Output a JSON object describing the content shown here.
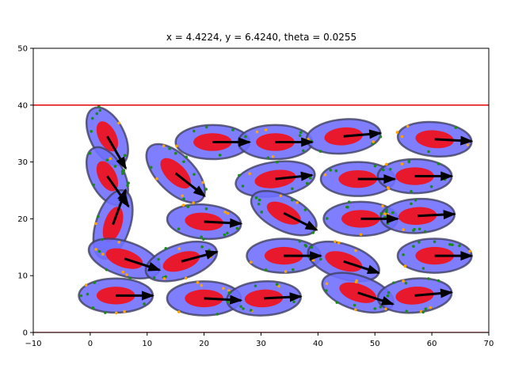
{
  "chart_data": {
    "type": "scatter",
    "title": "x = 4.4224, y = 6.4240, theta = 0.0255",
    "xlabel": "",
    "ylabel": "",
    "xlim": [
      -10,
      70
    ],
    "ylim": [
      0,
      50
    ],
    "xticks": [
      "−10",
      "0",
      "10",
      "20",
      "30",
      "40",
      "50",
      "60",
      "70"
    ],
    "yticks": [
      "0",
      "10",
      "20",
      "30",
      "40",
      "50"
    ],
    "xtick_values": [
      -10,
      0,
      10,
      20,
      30,
      40,
      50,
      60,
      70
    ],
    "ytick_values": [
      0,
      10,
      20,
      30,
      40,
      50
    ],
    "grid": false,
    "boundary_lines": [
      {
        "y": 40,
        "color": "#e00000"
      },
      {
        "y": 0,
        "color": "#e00000"
      }
    ],
    "colors": {
      "outer_fill": "#7070ff",
      "outer_edge": "#404060",
      "inner_fill": "#e8192c",
      "arrow": "#000000",
      "dot_green": "#1a8a1a",
      "dot_orange": "#ffa500"
    },
    "agents": [
      {
        "x": 3.0,
        "y": 34.5,
        "angle": -63,
        "w": 11.0,
        "h": 6.0,
        "heading": -60
      },
      {
        "x": 3.0,
        "y": 27.5,
        "angle": -63,
        "w": 11.0,
        "h": 6.0,
        "heading": -55
      },
      {
        "x": 4.0,
        "y": 19.0,
        "angle": 72,
        "w": 12.5,
        "h": 6.0,
        "heading": 70
      },
      {
        "x": 15.0,
        "y": 28.0,
        "angle": -45,
        "w": 13.0,
        "h": 6.5,
        "heading": -38
      },
      {
        "x": 21.5,
        "y": 33.5,
        "angle": 0,
        "w": 13.0,
        "h": 6.0,
        "heading": 0
      },
      {
        "x": 32.5,
        "y": 33.5,
        "angle": 0,
        "w": 13.0,
        "h": 6.0,
        "heading": 0
      },
      {
        "x": 44.5,
        "y": 34.5,
        "angle": 5,
        "w": 13.0,
        "h": 6.0,
        "heading": 5
      },
      {
        "x": 60.5,
        "y": 34.0,
        "angle": -5,
        "w": 13.0,
        "h": 6.0,
        "heading": -3
      },
      {
        "x": 32.5,
        "y": 27.0,
        "angle": 8,
        "w": 14.0,
        "h": 6.0,
        "heading": 6
      },
      {
        "x": 47.0,
        "y": 27.0,
        "angle": 0,
        "w": 13.0,
        "h": 6.0,
        "heading": 0
      },
      {
        "x": 57.0,
        "y": 27.5,
        "angle": 0,
        "w": 13.0,
        "h": 6.0,
        "heading": 0
      },
      {
        "x": 20.0,
        "y": 19.5,
        "angle": -5,
        "w": 13.0,
        "h": 6.0,
        "heading": -3
      },
      {
        "x": 34.0,
        "y": 21.0,
        "angle": -27,
        "w": 12.5,
        "h": 6.0,
        "heading": -27
      },
      {
        "x": 47.5,
        "y": 20.0,
        "angle": 0,
        "w": 13.0,
        "h": 6.0,
        "heading": 0
      },
      {
        "x": 57.5,
        "y": 20.5,
        "angle": 3,
        "w": 13.0,
        "h": 6.0,
        "heading": 3
      },
      {
        "x": 6.0,
        "y": 13.0,
        "angle": -18,
        "w": 13.0,
        "h": 6.0,
        "heading": -18
      },
      {
        "x": 16.0,
        "y": 12.5,
        "angle": 18,
        "w": 13.0,
        "h": 6.0,
        "heading": 15
      },
      {
        "x": 34.0,
        "y": 13.5,
        "angle": 0,
        "w": 13.0,
        "h": 6.0,
        "heading": 0
      },
      {
        "x": 44.5,
        "y": 12.5,
        "angle": -18,
        "w": 13.0,
        "h": 6.0,
        "heading": -18
      },
      {
        "x": 60.5,
        "y": 13.5,
        "angle": 0,
        "w": 13.0,
        "h": 6.0,
        "heading": 0
      },
      {
        "x": 4.5,
        "y": 6.5,
        "angle": 0,
        "w": 13.0,
        "h": 6.0,
        "heading": 0
      },
      {
        "x": 20.0,
        "y": 6.0,
        "angle": 0,
        "w": 13.0,
        "h": 6.0,
        "heading": -3
      },
      {
        "x": 30.5,
        "y": 6.0,
        "angle": 3,
        "w": 13.0,
        "h": 6.0,
        "heading": 3
      },
      {
        "x": 47.0,
        "y": 7.0,
        "angle": -18,
        "w": 13.0,
        "h": 6.0,
        "heading": -18
      },
      {
        "x": 57.0,
        "y": 6.5,
        "angle": 5,
        "w": 13.0,
        "h": 6.0,
        "heading": 5
      }
    ]
  }
}
